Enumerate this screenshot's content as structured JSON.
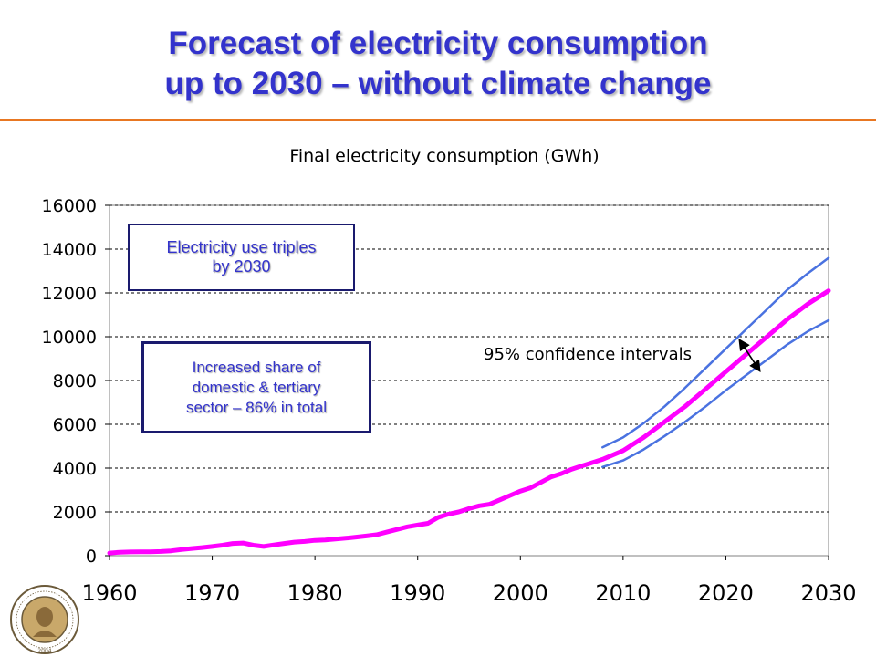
{
  "slide": {
    "title_line1": "Forecast of electricity consumption",
    "title_line2": "up to 2030 – without climate change",
    "accent_color": "#e87722",
    "title_color": "#3333cc"
  },
  "annotations": {
    "box1_line1": "Electricity use triples",
    "box1_line2": "by 2030",
    "box2_line1": "Increased share of",
    "box2_line2": "domestic & tertiary",
    "box2_line3": "sector – 86% in total",
    "confidence_label": "95% confidence intervals"
  },
  "logo": {
    "icon": "university-seal-icon",
    "ring_text": "ΤΕΧΝΟΛΟΓΙΚΟ ΠΑΝΕΠΙΣΤΗΜΙΟ ΚΥΠΡΟΥ",
    "year": "2004"
  },
  "chart_data": {
    "type": "line",
    "title": "Final electricity consumption (GWh)",
    "xlabel": "",
    "ylabel": "",
    "xlim": [
      1960,
      2030
    ],
    "ylim": [
      0,
      16000
    ],
    "x_ticks": [
      "1960",
      "1970",
      "1980",
      "1990",
      "2000",
      "2010",
      "2020",
      "2030"
    ],
    "y_ticks": [
      "0",
      "2000",
      "4000",
      "6000",
      "8000",
      "10000",
      "12000",
      "14000",
      "16000"
    ],
    "grid": "horizontal dashed",
    "legend": "none",
    "series": [
      {
        "color": "#ff00ff",
        "x": [
          1960,
          1961,
          1962,
          1963,
          1964,
          1965,
          1966,
          1967,
          1968,
          1969,
          1970,
          1971,
          1972,
          1973,
          1974,
          1975,
          1976,
          1977,
          1978,
          1979,
          1980,
          1981,
          1982,
          1983,
          1984,
          1985,
          1986,
          1987,
          1988,
          1989,
          1990,
          1991,
          1992,
          1993,
          1994,
          1995,
          1996,
          1997,
          1998,
          1999,
          2000,
          2001,
          2002,
          2003,
          2004,
          2005,
          2006,
          2007,
          2008,
          2010,
          2012,
          2014,
          2016,
          2018,
          2020,
          2022,
          2024,
          2026,
          2028,
          2030
        ],
        "y": [
          120,
          160,
          170,
          180,
          180,
          190,
          220,
          280,
          330,
          370,
          420,
          480,
          560,
          580,
          480,
          420,
          490,
          560,
          620,
          650,
          700,
          720,
          760,
          800,
          850,
          900,
          960,
          1080,
          1200,
          1320,
          1400,
          1480,
          1750,
          1900,
          2000,
          2150,
          2280,
          2350,
          2550,
          2750,
          2950,
          3100,
          3350,
          3600,
          3750,
          3950,
          4100,
          4250,
          4400,
          4800,
          5400,
          6100,
          6800,
          7600,
          8400,
          9200,
          10000,
          10800,
          11500,
          12100
        ]
      },
      {
        "color": "#4a72e0",
        "x": [
          2008,
          2010,
          2012,
          2014,
          2016,
          2018,
          2020,
          2022,
          2024,
          2026,
          2028,
          2030
        ],
        "y": [
          4950,
          5400,
          6050,
          6800,
          7650,
          8550,
          9450,
          10350,
          11250,
          12150,
          12900,
          13600
        ]
      },
      {
        "color": "#4a72e0",
        "x": [
          2008,
          2010,
          2012,
          2014,
          2016,
          2018,
          2020,
          2022,
          2024,
          2026,
          2028,
          2030
        ],
        "y": [
          4050,
          4350,
          4850,
          5450,
          6100,
          6800,
          7550,
          8250,
          8950,
          9650,
          10250,
          10750
        ]
      }
    ]
  }
}
